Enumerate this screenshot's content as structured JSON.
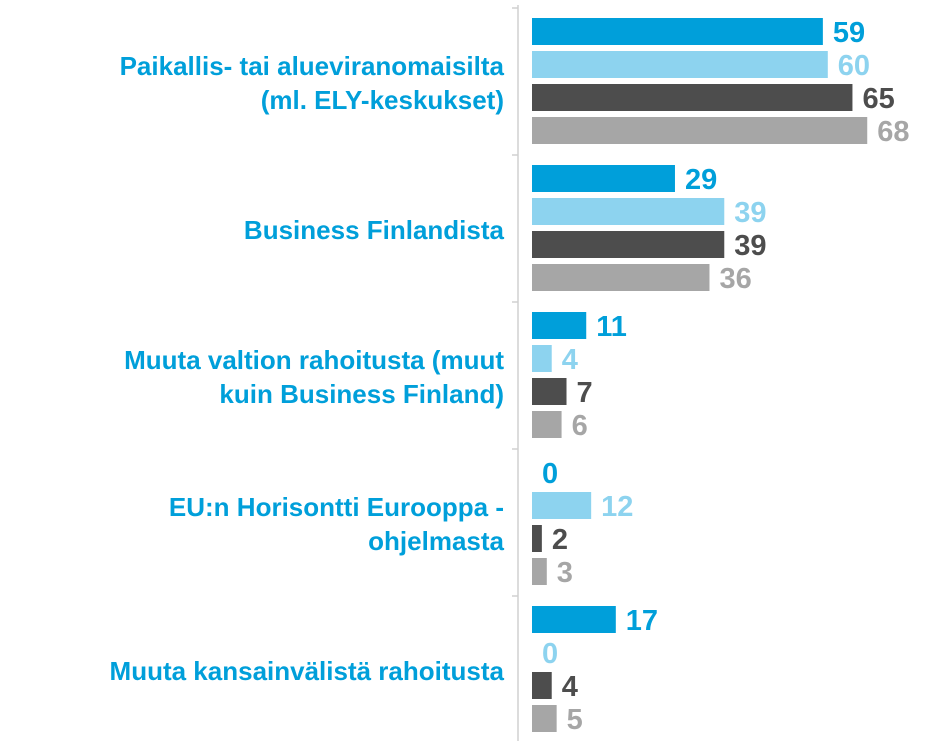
{
  "chart_data": {
    "type": "bar",
    "orientation": "horizontal",
    "categories": [
      "Paikallis- tai alueviranomaisilta\n(ml. ELY-keskukset)",
      "Business Finlandista",
      "Muuta valtion rahoitusta (muut\nkuin Business Finland)",
      "EU:n Horisontti Eurooppa -\nohjelmasta",
      "Muuta kansainvälistä rahoitusta"
    ],
    "series": [
      {
        "color": "#009fda",
        "values": [
          59,
          29,
          11,
          0,
          17
        ]
      },
      {
        "color": "#8dd3ef",
        "values": [
          60,
          39,
          4,
          12,
          0
        ]
      },
      {
        "color": "#4d4d4d",
        "values": [
          65,
          39,
          7,
          2,
          4
        ]
      },
      {
        "color": "#a6a6a6",
        "values": [
          68,
          36,
          6,
          3,
          5
        ]
      }
    ],
    "category_color": "#009fda"
  }
}
